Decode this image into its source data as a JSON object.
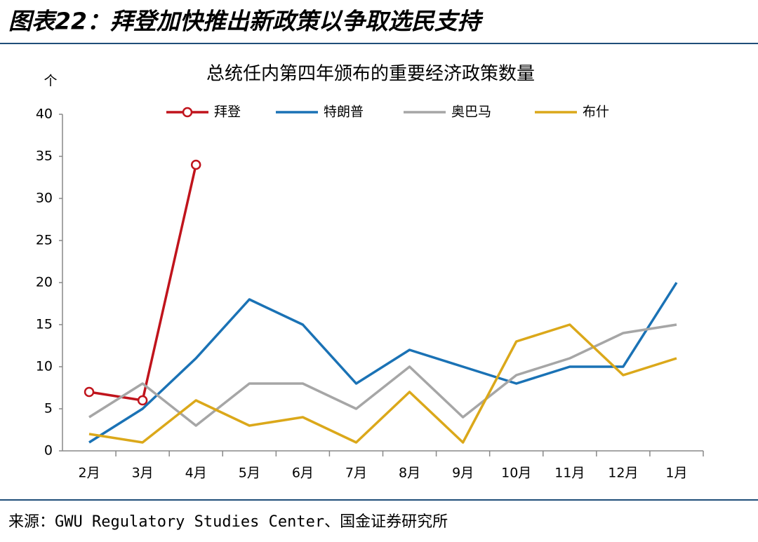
{
  "header": "图表22：拜登加快推出新政策以争取选民支持",
  "source": "来源：GWU Regulatory Studies Center、国金证券研究所",
  "chart_data": {
    "type": "line",
    "title": "总统任内第四年颁布的重要经济政策数量",
    "y_unit": "个",
    "categories": [
      "2月",
      "3月",
      "4月",
      "5月",
      "6月",
      "7月",
      "8月",
      "9月",
      "10月",
      "11月",
      "12月",
      "1月"
    ],
    "series": [
      {
        "name": "拜登",
        "color": "#c0141c",
        "marker": "circle",
        "values": [
          7,
          6,
          34,
          null,
          null,
          null,
          null,
          null,
          null,
          null,
          null,
          null
        ]
      },
      {
        "name": "特朗普",
        "color": "#1a72b5",
        "values": [
          1,
          5,
          11,
          18,
          15,
          8,
          12,
          10,
          8,
          10,
          10,
          20
        ]
      },
      {
        "name": "奥巴马",
        "color": "#a6a6a6",
        "values": [
          4,
          8,
          3,
          8,
          8,
          5,
          10,
          4,
          9,
          11,
          14,
          15
        ]
      },
      {
        "name": "布什",
        "color": "#dba81a",
        "values": [
          2,
          1,
          6,
          3,
          4,
          1,
          7,
          1,
          13,
          15,
          9,
          11
        ]
      }
    ],
    "ylim": [
      0,
      40
    ],
    "yticks": [
      0,
      5,
      10,
      15,
      20,
      25,
      30,
      35,
      40
    ],
    "grid": false,
    "legend": "top"
  }
}
